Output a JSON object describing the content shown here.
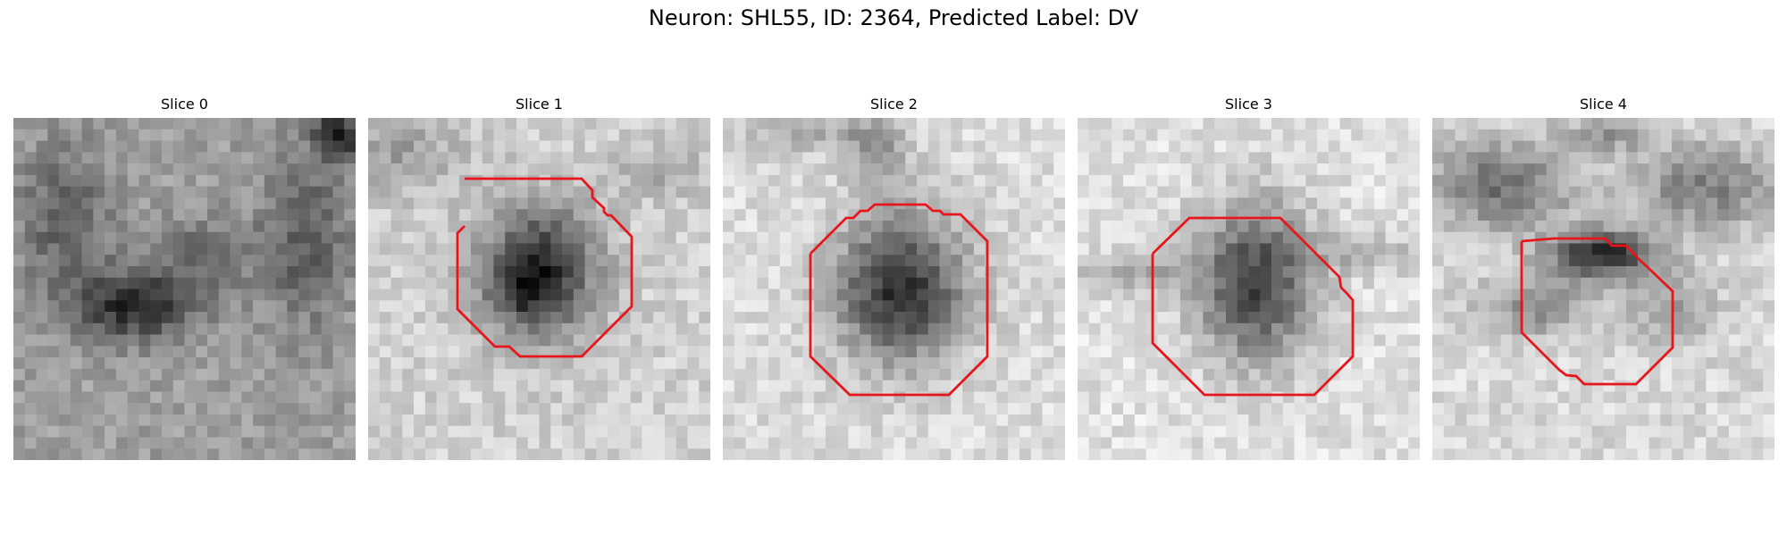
{
  "figure": {
    "title": "Neuron: SHL55, ID: 2364, Predicted Label: DV"
  },
  "colors": {
    "contour": "#e8151b",
    "background": "#ffffff"
  },
  "panels": [
    {
      "title": "Slice 0",
      "has_contour": false
    },
    {
      "title": "Slice 1",
      "has_contour": true
    },
    {
      "title": "Slice 2",
      "has_contour": true
    },
    {
      "title": "Slice 3",
      "has_contour": true
    },
    {
      "title": "Slice 4",
      "has_contour": true
    }
  ]
}
